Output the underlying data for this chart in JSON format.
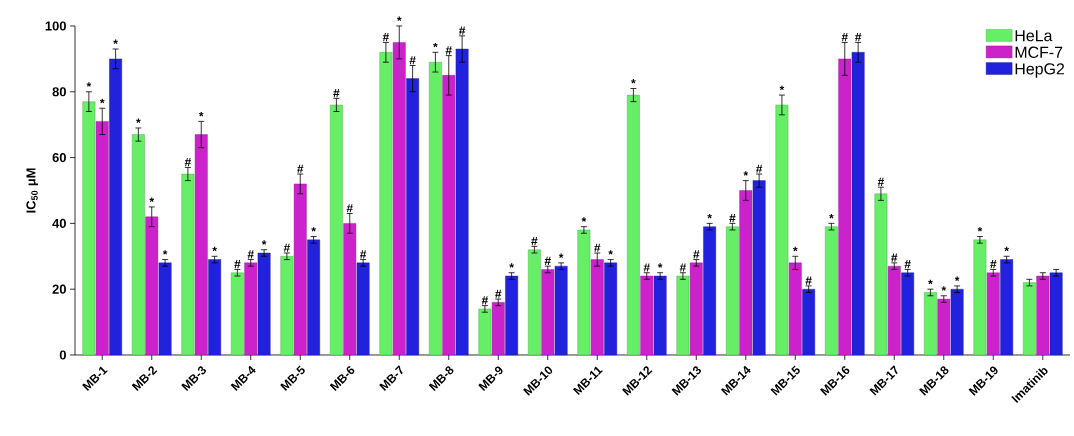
{
  "chart_data": {
    "type": "bar",
    "ylabel": "IC$_{50}$ μM",
    "categories": [
      "MB-1",
      "MB-2",
      "MB-3",
      "MB-4",
      "MB-5",
      "MB-6",
      "MB-7",
      "MB-8",
      "MB-9",
      "MB-10",
      "MB-11",
      "MB-12",
      "MB-13",
      "MB-14",
      "MB-15",
      "MB-16",
      "MB-17",
      "MB-18",
      "MB-19",
      "Imatinib"
    ],
    "ylim": [
      0,
      100
    ],
    "yticks": [
      0,
      20,
      40,
      60,
      80,
      100
    ],
    "legend": "top right",
    "series": [
      {
        "name": "HeLa",
        "color": "#66ee66",
        "values": [
          77,
          67,
          55,
          25,
          30,
          76,
          92,
          89,
          14,
          32,
          38,
          79,
          24,
          39,
          76,
          39,
          49,
          19,
          35,
          22
        ],
        "errors": [
          3,
          2,
          2,
          1,
          1,
          2,
          3,
          3,
          1,
          1,
          1,
          2,
          1,
          1,
          3,
          1,
          2,
          1,
          1,
          1
        ],
        "value_labels": [
          "*",
          "*",
          "#",
          "#",
          "#",
          "#",
          "#",
          "*",
          "#",
          "#",
          "*",
          "*",
          "#",
          "#",
          "*",
          "*",
          "#",
          "*",
          "*",
          null
        ]
      },
      {
        "name": "MCF-7",
        "color": "#cc22cc",
        "values": [
          71,
          42,
          67,
          28,
          52,
          40,
          95,
          85,
          16,
          26,
          29,
          24,
          28,
          50,
          28,
          90,
          27,
          17,
          25,
          24
        ],
        "errors": [
          4,
          3,
          4,
          1,
          3,
          3,
          5,
          6,
          1,
          1,
          2,
          1,
          1,
          3,
          2,
          5,
          1,
          1,
          1,
          1
        ],
        "value_labels": [
          "*",
          "*",
          "*",
          "#",
          "#",
          "#",
          "*",
          "#",
          "#",
          "#",
          "#",
          "#",
          "#",
          "*",
          "*",
          "#",
          "#",
          "*",
          "#",
          null
        ]
      },
      {
        "name": "HepG2",
        "color": "#2222dd",
        "values": [
          90,
          28,
          29,
          31,
          35,
          28,
          84,
          93,
          24,
          27,
          28,
          24,
          39,
          53,
          20,
          92,
          25,
          20,
          29,
          25
        ],
        "errors": [
          3,
          1,
          1,
          1,
          1,
          1,
          4,
          4,
          1,
          1,
          1,
          1,
          1,
          2,
          1,
          3,
          1,
          1,
          1,
          1
        ],
        "value_labels": [
          "*",
          "*",
          "*",
          "*",
          "*",
          "#",
          "#",
          "#",
          "*",
          "*",
          "*",
          "*",
          "*",
          "#",
          "#",
          "#",
          "#",
          "*",
          "*",
          null
        ]
      }
    ]
  }
}
